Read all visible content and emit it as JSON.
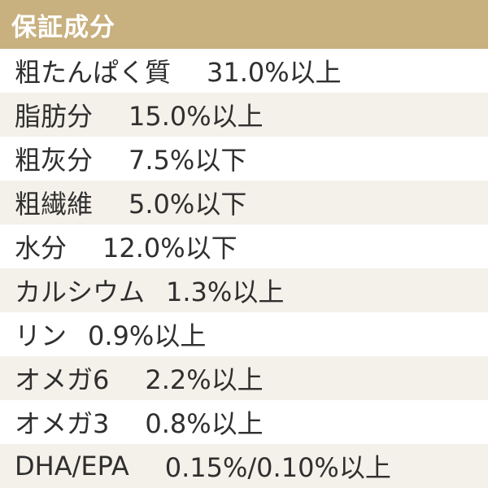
{
  "header": {
    "title": "保証成分"
  },
  "rows": [
    {
      "name": "粗たんぱく質",
      "value": "31.0%以上"
    },
    {
      "name": "脂肪分",
      "value": "15.0%以上"
    },
    {
      "name": "粗灰分",
      "value": "7.5%以下"
    },
    {
      "name": "粗繊維",
      "value": "5.0%以下"
    },
    {
      "name": "水分",
      "value": "12.0%以下"
    },
    {
      "name": "カルシウム",
      "value": "1.3%以上"
    },
    {
      "name": "リン",
      "value": "0.9%以上"
    },
    {
      "name": "オメガ6",
      "value": "2.2%以上"
    },
    {
      "name": "オメガ3",
      "value": "0.8%以上"
    },
    {
      "name": "DHA/EPA",
      "value": "0.15%/0.10%以上"
    }
  ],
  "colors": {
    "header_background": "#c8b07f",
    "header_text": "#ffffff",
    "row_alt_background": "#f4f1ea",
    "text": "#2f2f2f"
  }
}
